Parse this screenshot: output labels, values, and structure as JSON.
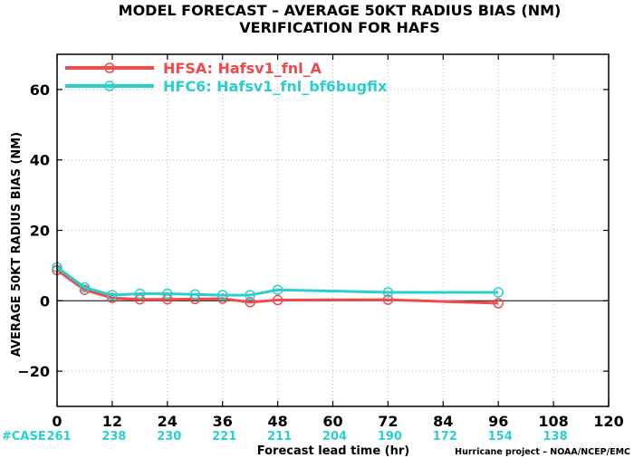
{
  "title": {
    "line1": "MODEL FORECAST – AVERAGE 50KT RADIUS BIAS (NM)",
    "line2": "VERIFICATION FOR HAFS"
  },
  "credit": "Hurricane project – NOAA/NCEP/EMC",
  "case_row": {
    "label": "#CASE",
    "counts": [
      261,
      238,
      230,
      221,
      211,
      204,
      190,
      172,
      154,
      138
    ]
  },
  "chart_data": {
    "type": "line",
    "xlabel": "Forecast lead time (hr)",
    "ylabel": "AVERAGE 50KT RADIUS BIAS (NM)",
    "xlim": [
      0,
      120
    ],
    "ylim": [
      -30,
      70
    ],
    "x_ticks": [
      0,
      12,
      24,
      36,
      48,
      60,
      72,
      84,
      96,
      108,
      120
    ],
    "y_ticks": [
      -20,
      0,
      20,
      40,
      60
    ],
    "grid": true,
    "legend_position": "top-left",
    "zero_line": true,
    "series": [
      {
        "name": "HFSA: Hafsv1_fnl_A",
        "color": "#f24a4a",
        "x": [
          0,
          6,
          12,
          18,
          24,
          30,
          36,
          42,
          48,
          72,
          96
        ],
        "y": [
          8.7,
          3.1,
          0.8,
          0.4,
          0.4,
          0.5,
          0.6,
          -0.4,
          0.2,
          0.3,
          -0.7
        ]
      },
      {
        "name": "HFC6: Hafsv1_fnl_bf6bugfix",
        "color": "#2ad0cc",
        "x": [
          0,
          6,
          12,
          18,
          24,
          30,
          36,
          42,
          48,
          72,
          96
        ],
        "y": [
          9.5,
          3.8,
          1.6,
          2.0,
          2.0,
          1.8,
          1.6,
          1.6,
          3.1,
          2.4,
          2.4
        ]
      }
    ]
  }
}
